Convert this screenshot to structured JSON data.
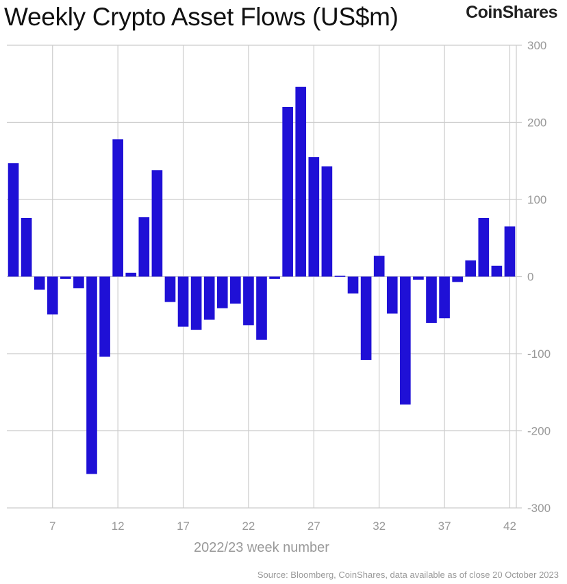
{
  "header": {
    "title": "Weekly Crypto Asset Flows (US$m)",
    "brand": "CoinShares"
  },
  "footer": {
    "source": "Source: Bloomberg, CoinShares, data available as of close 20 October 2023"
  },
  "colors": {
    "bar": "#1F10D6",
    "grid": "#cccccc",
    "text": "#999999"
  },
  "chart_data": {
    "type": "bar",
    "title": "Weekly Crypto Asset Flows (US$m)",
    "xlabel": "2022/23 week number",
    "ylabel": "",
    "ylim": [
      -300,
      300
    ],
    "yticks": [
      -300,
      -200,
      -100,
      0,
      100,
      200,
      300
    ],
    "xticks": [
      7,
      12,
      17,
      22,
      27,
      32,
      37,
      42
    ],
    "grid": true,
    "y_axis_position": "right",
    "categories": [
      4,
      5,
      6,
      7,
      8,
      9,
      10,
      11,
      12,
      13,
      14,
      15,
      16,
      17,
      18,
      19,
      20,
      21,
      22,
      23,
      24,
      25,
      26,
      27,
      28,
      29,
      30,
      31,
      32,
      33,
      34,
      35,
      36,
      37,
      38,
      39,
      40,
      41,
      42
    ],
    "values": [
      147,
      76,
      -17,
      -49,
      -3,
      -15,
      -256,
      -104,
      178,
      5,
      77,
      138,
      -33,
      -65,
      -69,
      -56,
      -41,
      -35,
      -63,
      -82,
      -3,
      220,
      246,
      155,
      143,
      1,
      -22,
      -108,
      27,
      -48,
      -166,
      -4,
      -60,
      -54,
      -7,
      21,
      76,
      14,
      65
    ]
  }
}
